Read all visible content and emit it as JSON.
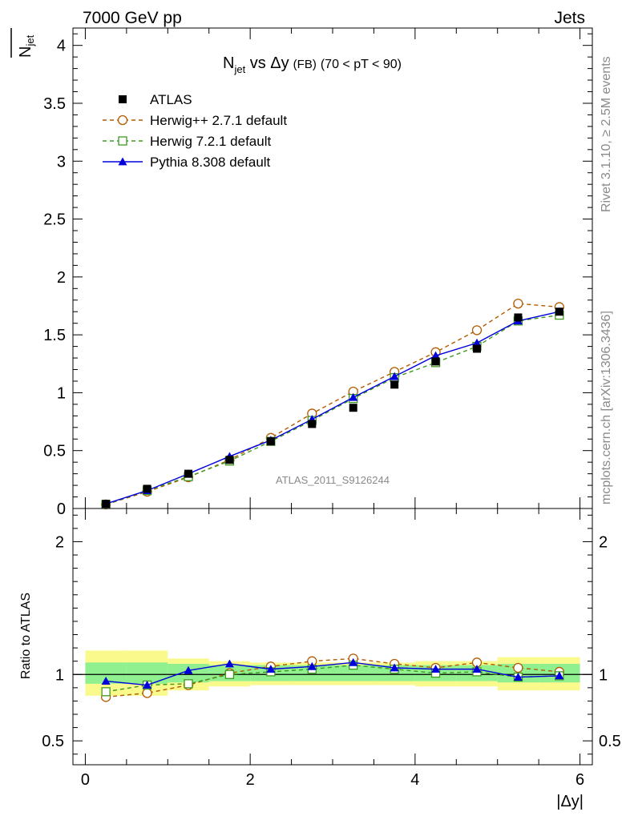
{
  "header": {
    "left": "7000 GeV pp",
    "right": "Jets"
  },
  "side_labels": {
    "rivet": "Rivet 3.1.10, ≥ 2.5M events",
    "mcplots": "mcplots.cern.ch [arXiv:1306.3436]"
  },
  "watermark": "ATLAS_2011_S9126244",
  "chart_data": {
    "type": "scatter",
    "title": "N_jet vs Δy (FB) (70 < pT < 90)",
    "title_parts": {
      "main": "N",
      "sub": "jet",
      "rest": " vs Δy",
      "small": "(FB)",
      "range": "(70 < pT <  90)"
    },
    "ylabel": "N_jet (overlined)",
    "ylabel_parts": {
      "main": "N",
      "sub": "jet"
    },
    "xlabel": "|Δy|",
    "ratio_ylabel": "Ratio to ATLAS",
    "xlim": [
      -0.15,
      6.15
    ],
    "ylim": [
      0,
      4.15
    ],
    "ratio_ylim": [
      0.32,
      2.25
    ],
    "x_ticks": [
      "0",
      "2",
      "4",
      "6"
    ],
    "y_ticks": [
      "0",
      "0.5",
      "1",
      "1.5",
      "2",
      "2.5",
      "3",
      "3.5",
      "4"
    ],
    "ratio_y_ticks": [
      "0.5",
      "1",
      "2"
    ],
    "legend_position": "top-left",
    "x": [
      0.25,
      0.75,
      1.25,
      1.75,
      2.25,
      2.75,
      3.25,
      3.75,
      4.25,
      4.75,
      5.25,
      5.75
    ],
    "bin_edges": [
      0,
      0.5,
      1.0,
      1.5,
      2.0,
      2.5,
      3.0,
      3.5,
      4.0,
      4.5,
      5.0,
      5.5,
      6.0
    ],
    "series": [
      {
        "name": "ATLAS",
        "color": "#000000",
        "marker": "square-filled",
        "line": "none",
        "values": [
          0.04,
          0.17,
          0.3,
          0.42,
          0.58,
          0.73,
          0.87,
          1.07,
          1.27,
          1.38,
          1.65,
          1.7
        ],
        "ratio": [
          1.0,
          1.0,
          1.0,
          1.0,
          1.0,
          1.0,
          1.0,
          1.0,
          1.0,
          1.0,
          1.0,
          1.0
        ]
      },
      {
        "name": "Herwig++ 2.7.1 default",
        "color": "#b35a00",
        "marker": "circle-open",
        "line": "dashed",
        "values": [
          0.035,
          0.145,
          0.27,
          0.42,
          0.61,
          0.82,
          1.01,
          1.18,
          1.35,
          1.54,
          1.77,
          1.74
        ],
        "ratio": [
          0.83,
          0.86,
          0.92,
          1.01,
          1.06,
          1.1,
          1.12,
          1.08,
          1.05,
          1.09,
          1.05,
          1.02
        ]
      },
      {
        "name": "Herwig 7.2.1 default",
        "color": "#3f9a1f",
        "marker": "square-open",
        "line": "dashed",
        "values": [
          0.035,
          0.155,
          0.275,
          0.41,
          0.58,
          0.76,
          0.95,
          1.13,
          1.26,
          1.4,
          1.62,
          1.67
        ],
        "ratio": [
          0.87,
          0.92,
          0.93,
          1.0,
          1.02,
          1.04,
          1.07,
          1.04,
          1.01,
          1.02,
          0.98,
          0.99
        ]
      },
      {
        "name": "Pythia 8.308 default",
        "color": "#0000dd",
        "marker": "triangle-filled",
        "line": "solid",
        "values": [
          0.04,
          0.155,
          0.3,
          0.45,
          0.59,
          0.77,
          0.96,
          1.14,
          1.32,
          1.43,
          1.62,
          1.7
        ],
        "ratio": [
          0.95,
          0.92,
          1.03,
          1.08,
          1.04,
          1.06,
          1.09,
          1.05,
          1.04,
          1.04,
          0.98,
          0.99
        ]
      }
    ],
    "band_inner": [
      [
        0.93,
        1.09
      ],
      [
        0.93,
        1.09
      ],
      [
        0.94,
        1.08
      ],
      [
        0.95,
        1.07
      ],
      [
        0.95,
        1.07
      ],
      [
        0.95,
        1.07
      ],
      [
        0.95,
        1.07
      ],
      [
        0.95,
        1.07
      ],
      [
        0.95,
        1.07
      ],
      [
        0.95,
        1.07
      ],
      [
        0.94,
        1.08
      ],
      [
        0.94,
        1.08
      ]
    ],
    "band_outer": [
      [
        0.84,
        1.18
      ],
      [
        0.84,
        1.18
      ],
      [
        0.88,
        1.12
      ],
      [
        0.91,
        1.1
      ],
      [
        0.92,
        1.09
      ],
      [
        0.92,
        1.09
      ],
      [
        0.92,
        1.09
      ],
      [
        0.92,
        1.09
      ],
      [
        0.91,
        1.1
      ],
      [
        0.91,
        1.1
      ],
      [
        0.88,
        1.13
      ],
      [
        0.88,
        1.13
      ]
    ],
    "band_colors": {
      "inner": "#90f090",
      "outer": "#f9f98c"
    }
  }
}
